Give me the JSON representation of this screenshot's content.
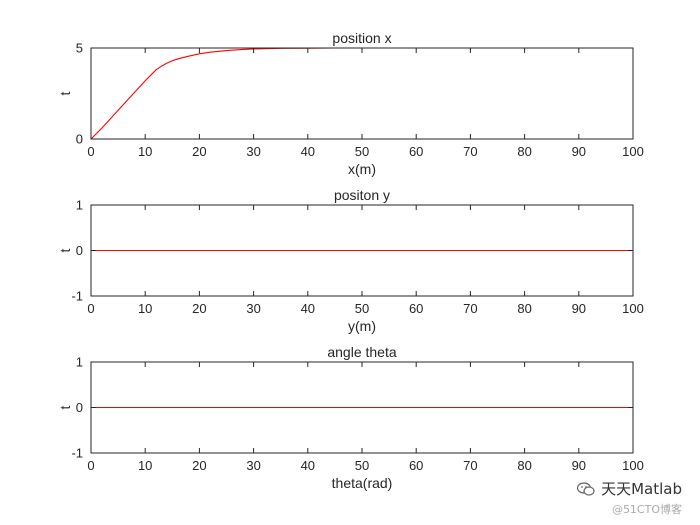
{
  "chart_data": [
    {
      "type": "line",
      "title": "position x",
      "xlabel": "x(m)",
      "ylabel": "t",
      "xlim": [
        0,
        100
      ],
      "ylim": [
        0,
        5
      ],
      "xticks": [
        0,
        10,
        20,
        30,
        40,
        50,
        60,
        70,
        80,
        90,
        100
      ],
      "yticks": [
        0,
        5
      ],
      "color": "#ff0000",
      "x": [
        0,
        2,
        4,
        6,
        8,
        10,
        12,
        13,
        14,
        15,
        16,
        18,
        20,
        22,
        25,
        28,
        30,
        35,
        40,
        45,
        50,
        60,
        70,
        80,
        90,
        100
      ],
      "y": [
        0,
        0.6,
        1.25,
        1.9,
        2.55,
        3.2,
        3.8,
        4.0,
        4.17,
        4.3,
        4.4,
        4.55,
        4.68,
        4.77,
        4.86,
        4.92,
        4.95,
        4.98,
        4.99,
        5.0,
        5.0,
        5.0,
        5.0,
        5.0,
        5.0,
        5.0
      ]
    },
    {
      "type": "line",
      "title": "positon y",
      "xlabel": "y(m)",
      "ylabel": "t",
      "xlim": [
        0,
        100
      ],
      "ylim": [
        -1,
        1
      ],
      "xticks": [
        0,
        10,
        20,
        30,
        40,
        50,
        60,
        70,
        80,
        90,
        100
      ],
      "yticks": [
        -1,
        0,
        1
      ],
      "color": "#ff0000",
      "x": [
        0,
        100
      ],
      "y": [
        0,
        0
      ]
    },
    {
      "type": "line",
      "title": "angle theta",
      "xlabel": "theta(rad)",
      "ylabel": "t",
      "xlim": [
        0,
        100
      ],
      "ylim": [
        -1,
        1
      ],
      "xticks": [
        0,
        10,
        20,
        30,
        40,
        50,
        60,
        70,
        80,
        90,
        100
      ],
      "yticks": [
        -1,
        0,
        1
      ],
      "color": "#ff0000",
      "x": [
        0,
        100
      ],
      "y": [
        0,
        0
      ]
    }
  ],
  "watermark": {
    "name": "天天Matlab",
    "source": "@51CTO博客",
    "icon": "wechat-icon"
  }
}
